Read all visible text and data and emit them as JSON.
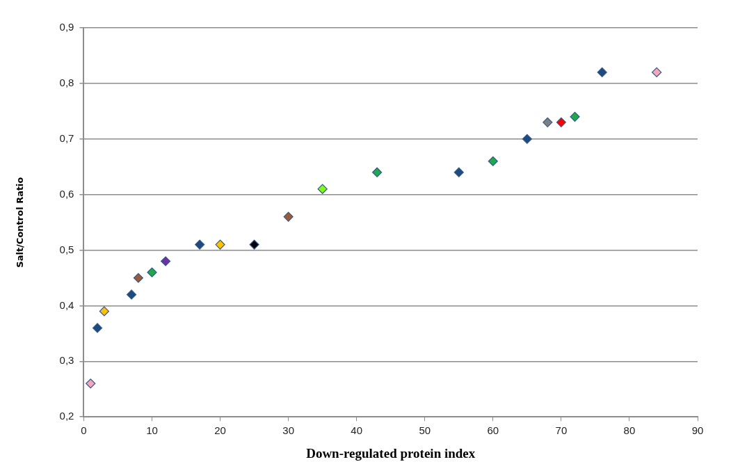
{
  "chart_data": {
    "type": "scatter",
    "xlabel": "Down-regulated protein index",
    "ylabel": "Salt/Control Ratio",
    "x": [
      1,
      2,
      3,
      7,
      8,
      10,
      12,
      17,
      20,
      25,
      30,
      35,
      43,
      55,
      60,
      65,
      68,
      70,
      72,
      76,
      84
    ],
    "values": [
      0.26,
      0.36,
      0.39,
      0.42,
      0.45,
      0.46,
      0.48,
      0.51,
      0.51,
      0.51,
      0.56,
      0.61,
      0.64,
      0.64,
      0.66,
      0.7,
      0.73,
      0.73,
      0.74,
      0.82,
      0.82
    ],
    "colors": [
      "#f7a6b8",
      "#1f4a7d",
      "#ffc000",
      "#1f4a7d",
      "#9c5a36",
      "#21a84a",
      "#7030a0",
      "#1f4a7d",
      "#ffc000",
      "#000000",
      "#9c5a36",
      "#80ff00",
      "#21a84a",
      "#1f4a7d",
      "#21a84a",
      "#1f4a7d",
      "#7f7f7f",
      "#ff0000",
      "#21a84a",
      "#1f4a7d",
      "#f7a6b8"
    ],
    "marker": "diamond",
    "grid": "y",
    "xlim": [
      0,
      90
    ],
    "xticks": [
      0,
      10,
      20,
      30,
      40,
      50,
      60,
      70,
      80,
      90
    ],
    "ylim": [
      0.2,
      0.9
    ],
    "yticks": [
      {
        "value": 0.2,
        "label": "0,2"
      },
      {
        "value": 0.3,
        "label": "0,3"
      },
      {
        "value": 0.4,
        "label": "0,4"
      },
      {
        "value": 0.5,
        "label": "0,5"
      },
      {
        "value": 0.6,
        "label": "0,6"
      },
      {
        "value": 0.7,
        "label": "0,7"
      },
      {
        "value": 0.8,
        "label": "0,8"
      },
      {
        "value": 0.9,
        "label": "0,9"
      }
    ]
  }
}
